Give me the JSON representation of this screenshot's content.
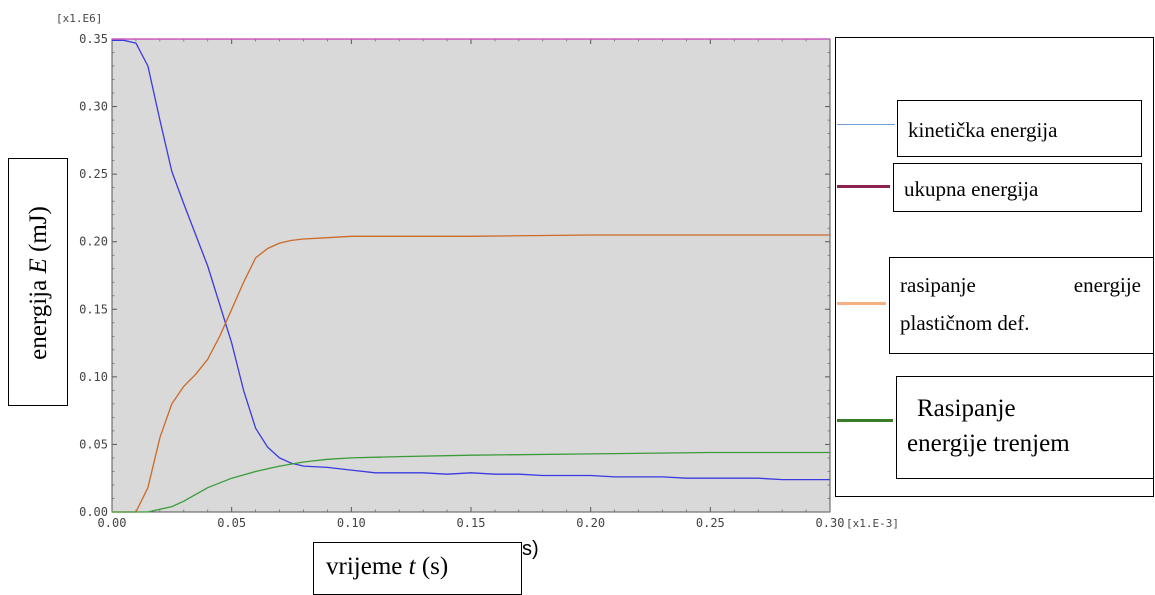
{
  "chart_data": {
    "type": "line",
    "xlabel_name": "vrijeme ",
    "xlabel_var": "t",
    "xlabel_unit": " (s)",
    "stray_fragment": "s)",
    "ylabel_name": "energija ",
    "ylabel_var": "E",
    "ylabel_unit": " (mJ)",
    "x_multiplier": "[x1.E-3]",
    "y_multiplier": "[x1.E6]",
    "xlim": [
      0,
      0.3
    ],
    "ylim": [
      0,
      0.35
    ],
    "x_ticks": [
      "0.00",
      "0.05",
      "0.10",
      "0.15",
      "0.20",
      "0.25",
      "0.30"
    ],
    "y_ticks": [
      "0.00",
      "0.05",
      "0.10",
      "0.15",
      "0.20",
      "0.25",
      "0.30",
      "0.35"
    ],
    "grid": false,
    "background": "#d9d9d9",
    "legend_position": "right",
    "series": [
      {
        "name": "kinetička energija",
        "color": "#3a3ae0",
        "legend_color": "#6f9fd6",
        "x": [
          0,
          0.005,
          0.01,
          0.015,
          0.02,
          0.025,
          0.03,
          0.04,
          0.05,
          0.055,
          0.06,
          0.065,
          0.07,
          0.075,
          0.08,
          0.09,
          0.1,
          0.11,
          0.12,
          0.13,
          0.14,
          0.15,
          0.16,
          0.17,
          0.18,
          0.19,
          0.2,
          0.21,
          0.22,
          0.23,
          0.24,
          0.25,
          0.26,
          0.27,
          0.28,
          0.29,
          0.3
        ],
        "y": [
          0.349,
          0.349,
          0.347,
          0.33,
          0.29,
          0.252,
          0.228,
          0.182,
          0.125,
          0.09,
          0.062,
          0.048,
          0.04,
          0.036,
          0.034,
          0.033,
          0.031,
          0.029,
          0.029,
          0.029,
          0.028,
          0.029,
          0.028,
          0.028,
          0.027,
          0.027,
          0.027,
          0.026,
          0.026,
          0.026,
          0.025,
          0.025,
          0.025,
          0.025,
          0.024,
          0.024,
          0.024
        ]
      },
      {
        "name": "ukupna energija",
        "color": "#c83cb4",
        "legend_color": "#8b2252",
        "x": [
          0,
          0.3
        ],
        "y": [
          0.35,
          0.35
        ]
      },
      {
        "name": "rasipanje energije plastičnom def.",
        "color": "#cc6a28",
        "legend_color": "#f4b183",
        "x": [
          0,
          0.01,
          0.015,
          0.02,
          0.025,
          0.03,
          0.035,
          0.04,
          0.045,
          0.05,
          0.055,
          0.06,
          0.065,
          0.07,
          0.075,
          0.08,
          0.09,
          0.1,
          0.11,
          0.12,
          0.15,
          0.2,
          0.25,
          0.3
        ],
        "y": [
          0,
          0,
          0.018,
          0.055,
          0.08,
          0.093,
          0.102,
          0.113,
          0.13,
          0.15,
          0.17,
          0.188,
          0.195,
          0.199,
          0.201,
          0.202,
          0.203,
          0.204,
          0.204,
          0.204,
          0.204,
          0.205,
          0.205,
          0.205
        ]
      },
      {
        "name": "Rasipanje energije trenjem",
        "color": "#3c9a3c",
        "legend_color": "#3a7d2a",
        "x": [
          0,
          0.015,
          0.02,
          0.025,
          0.03,
          0.04,
          0.05,
          0.06,
          0.07,
          0.08,
          0.09,
          0.1,
          0.12,
          0.15,
          0.2,
          0.25,
          0.3
        ],
        "y": [
          0,
          0,
          0.002,
          0.004,
          0.008,
          0.018,
          0.025,
          0.03,
          0.034,
          0.037,
          0.039,
          0.04,
          0.041,
          0.042,
          0.043,
          0.044,
          0.044
        ]
      }
    ]
  },
  "legend": [
    {
      "line1": "kinetička energija",
      "line2": ""
    },
    {
      "line1": "ukupna energija",
      "line2": ""
    },
    {
      "line1": "rasipanje energije",
      "line2": "plastičnom def."
    },
    {
      "line1": "Rasipanje",
      "line2": "energije trenjem"
    }
  ]
}
